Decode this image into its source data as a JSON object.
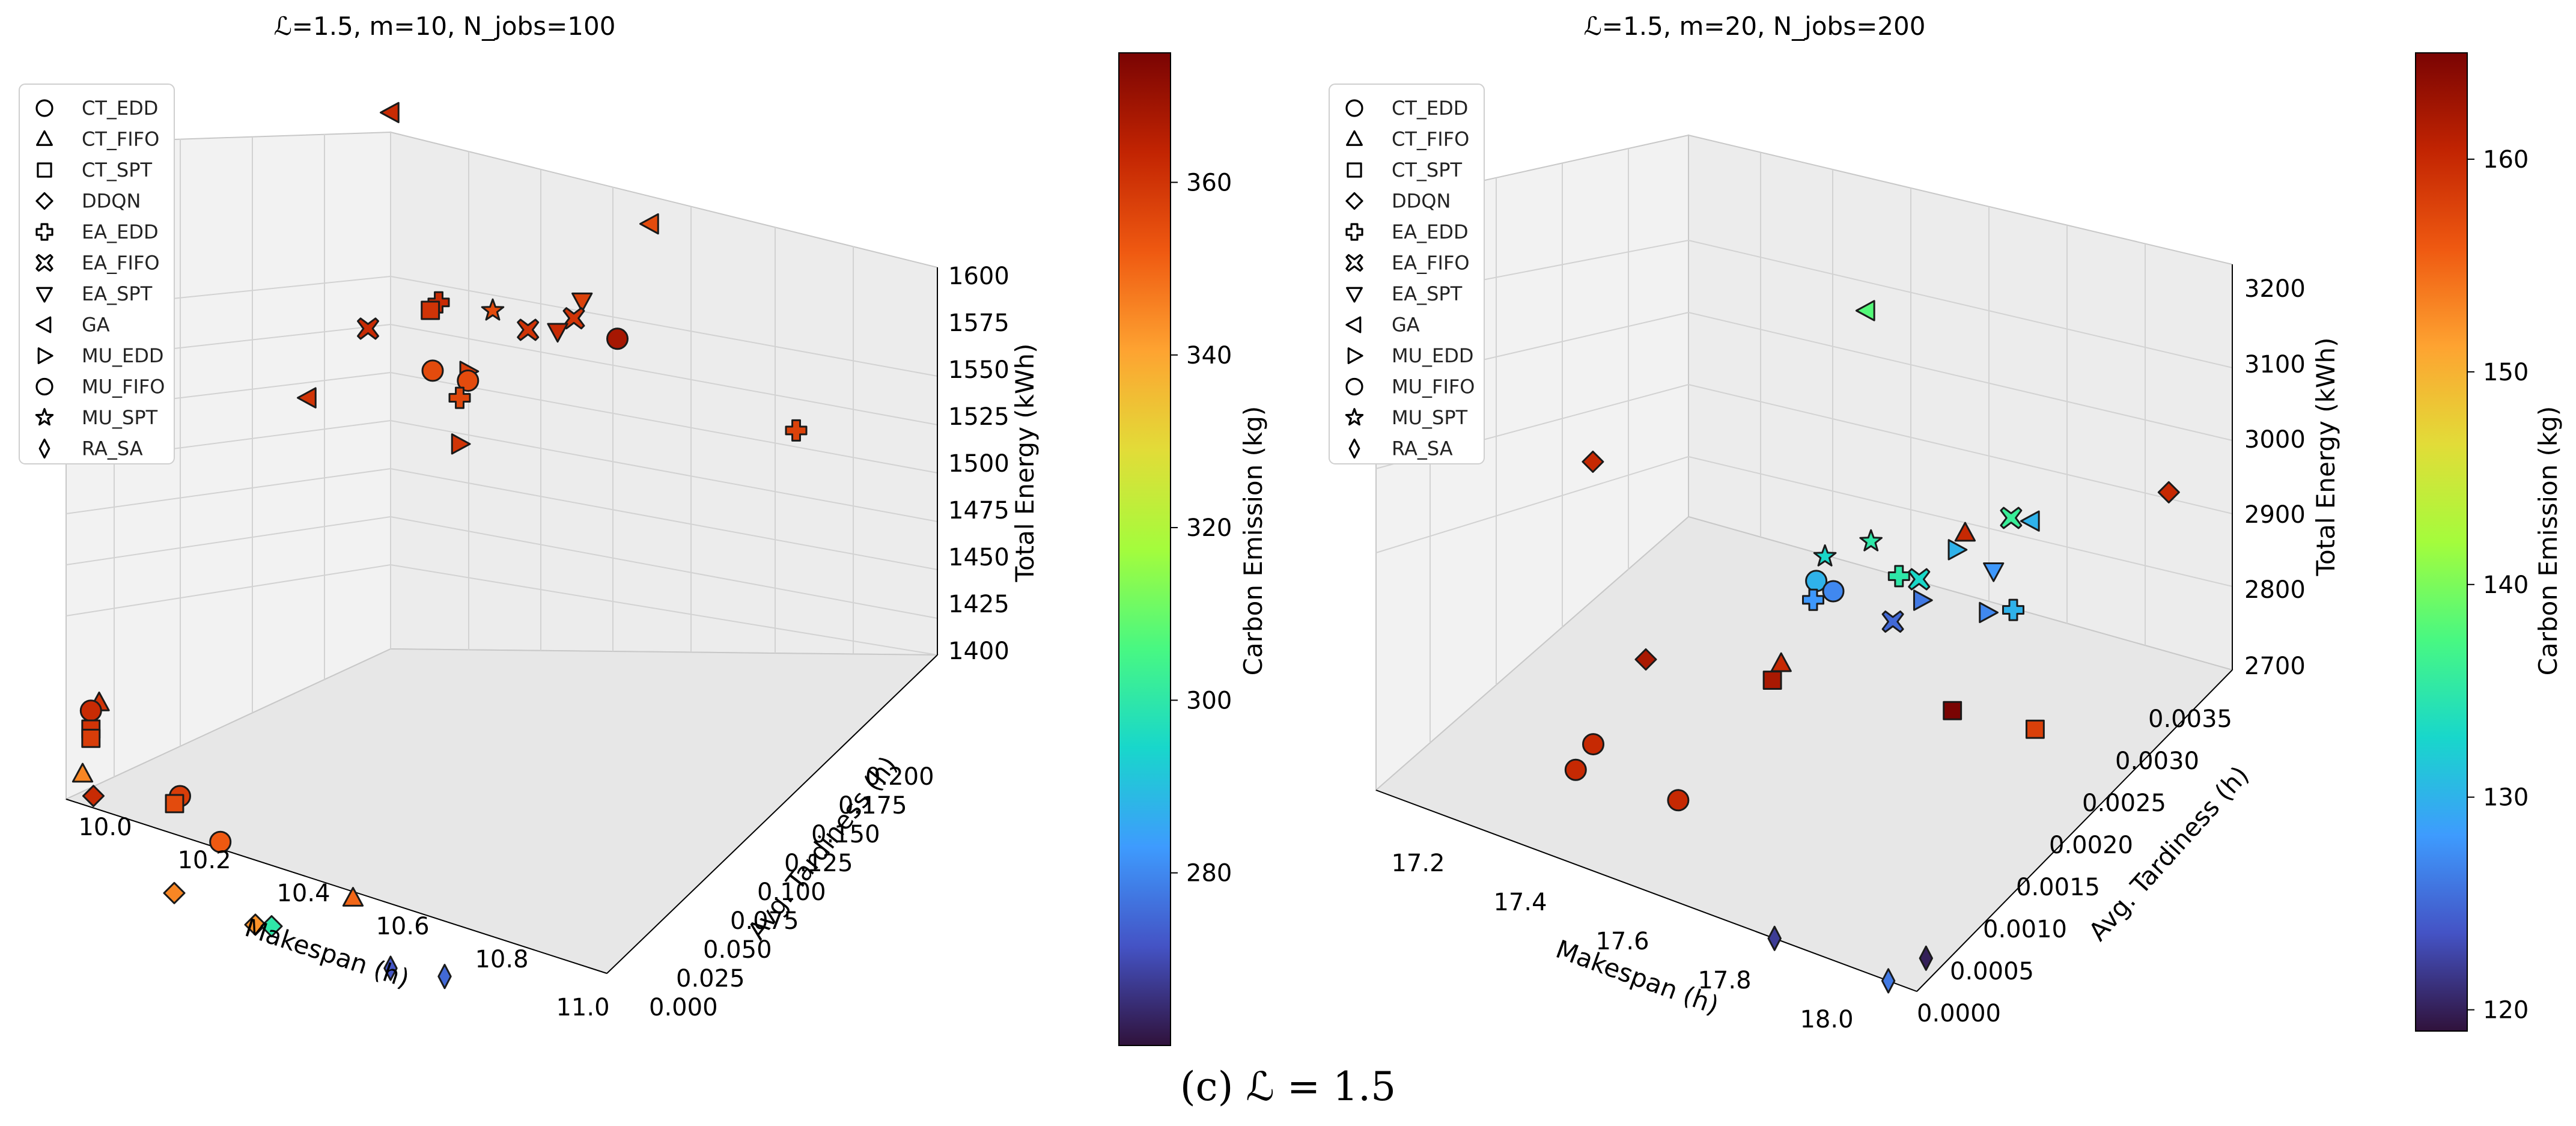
{
  "caption": "(c)  ℒ = 1.5",
  "chart_data": [
    {
      "type": "scatter3d",
      "title": "ℒ=1.5, m=10, N_jobs=100",
      "xlabel": "Makespan (h)",
      "ylabel": "Avg. Tardiness (h)",
      "zlabel": "Total Energy (kWh)",
      "colorbar_label": "Carbon Emission (kg)",
      "xlim": [
        10.0,
        11.0
      ],
      "ylim": [
        0.0,
        0.2
      ],
      "zlim": [
        1390,
        1600
      ],
      "clim": [
        260,
        375
      ],
      "xticks": [
        "10.0",
        "10.2",
        "10.4",
        "10.6",
        "10.8",
        "11.0"
      ],
      "yticks": [
        "0.000",
        "0.025",
        "0.050",
        "0.075",
        "0.100",
        "0.125",
        "0.150",
        "0.175",
        "0.200"
      ],
      "zticks": [
        "1400",
        "1425",
        "1450",
        "1475",
        "1500",
        "1525",
        "1550",
        "1575",
        "1600"
      ],
      "cticks": [
        "280",
        "300",
        "320",
        "340",
        "360"
      ],
      "legend": [
        "CT_EDD",
        "CT_FIFO",
        "CT_SPT",
        "DDQN",
        "EA_EDD",
        "EA_FIFO",
        "EA_SPT",
        "GA",
        "MU_EDD",
        "MU_FIFO",
        "MU_SPT",
        "RA_SA"
      ],
      "points": [
        {
          "method": "GA",
          "x": 10.02,
          "y": 0.19,
          "z": 1600,
          "c": 362
        },
        {
          "method": "GA",
          "x": 10.5,
          "y": 0.19,
          "z": 1585,
          "c": 355
        },
        {
          "method": "EA_FIFO",
          "x": 10.1,
          "y": 0.15,
          "z": 1525,
          "c": 362
        },
        {
          "method": "GA",
          "x": 10.05,
          "y": 0.13,
          "z": 1500,
          "c": 360
        },
        {
          "method": "EA_SPT",
          "x": 10.45,
          "y": 0.165,
          "z": 1560,
          "c": 357
        },
        {
          "method": "EA_FIFO",
          "x": 10.45,
          "y": 0.16,
          "z": 1555,
          "c": 360
        },
        {
          "method": "EA_SPT",
          "x": 10.42,
          "y": 0.16,
          "z": 1545,
          "c": 362
        },
        {
          "method": "MU_SPT",
          "x": 10.3,
          "y": 0.16,
          "z": 1545,
          "c": 355
        },
        {
          "method": "EA_EDD",
          "x": 10.2,
          "y": 0.16,
          "z": 1540,
          "c": 362
        },
        {
          "method": "CT_SPT",
          "x": 10.2,
          "y": 0.155,
          "z": 1540,
          "c": 360
        },
        {
          "method": "EA_FIFO",
          "x": 10.35,
          "y": 0.165,
          "z": 1535,
          "c": 360
        },
        {
          "method": "MU_FIFO",
          "x": 10.5,
          "y": 0.17,
          "z": 1540,
          "c": 368
        },
        {
          "method": "MU_FIFO",
          "x": 10.25,
          "y": 0.14,
          "z": 1525,
          "c": 355
        },
        {
          "method": "MU_EDD",
          "x": 10.3,
          "y": 0.145,
          "z": 1525,
          "c": 358
        },
        {
          "method": "MU_FIFO",
          "x": 10.3,
          "y": 0.145,
          "z": 1520,
          "c": 355
        },
        {
          "method": "EA_EDD",
          "x": 10.3,
          "y": 0.14,
          "z": 1515,
          "c": 356
        },
        {
          "method": "MU_EDD",
          "x": 10.3,
          "y": 0.14,
          "z": 1490,
          "c": 360
        },
        {
          "method": "EA_EDD",
          "x": 10.8,
          "y": 0.18,
          "z": 1510,
          "c": 357
        },
        {
          "method": "CT_EDD",
          "x": 10.0,
          "y": 0.015,
          "z": 1425,
          "c": 362
        },
        {
          "method": "CT_FIFO",
          "x": 10.0,
          "y": 0.02,
          "z": 1425,
          "c": 360
        },
        {
          "method": "CT_SPT",
          "x": 10.0,
          "y": 0.015,
          "z": 1415,
          "c": 360
        },
        {
          "method": "CT_SPT",
          "x": 10.0,
          "y": 0.015,
          "z": 1410,
          "c": 358
        },
        {
          "method": "CT_FIFO",
          "x": 10.0,
          "y": 0.01,
          "z": 1395,
          "c": 345
        },
        {
          "method": "DDQN",
          "x": 10.02,
          "y": 0.01,
          "z": 1385,
          "c": 362
        },
        {
          "method": "CT_EDD",
          "x": 10.18,
          "y": 0.01,
          "z": 1400,
          "c": 358
        },
        {
          "method": "CT_SPT",
          "x": 10.17,
          "y": 0.01,
          "z": 1395,
          "c": 355
        },
        {
          "method": "MU_FIFO",
          "x": 10.27,
          "y": 0.005,
          "z": 1388,
          "c": 352
        },
        {
          "method": "CT_FIFO",
          "x": 10.5,
          "y": 0.01,
          "z": 1375,
          "c": 350
        },
        {
          "method": "DDQN",
          "x": 10.2,
          "y": 0.0,
          "z": 1358,
          "c": 345
        },
        {
          "method": "DDQN",
          "x": 10.35,
          "y": 0.0,
          "z": 1355,
          "c": 343
        },
        {
          "method": "DDQN",
          "x": 10.38,
          "y": 0.0,
          "z": 1357,
          "c": 300
        },
        {
          "method": "RA_SA",
          "x": 10.6,
          "y": 0.0,
          "z": 1355,
          "c": 272
        },
        {
          "method": "RA_SA",
          "x": 10.7,
          "y": 0.0,
          "z": 1360,
          "c": 275
        }
      ]
    },
    {
      "type": "scatter3d",
      "title": "ℒ=1.5, m=20, N_jobs=200",
      "xlabel": "Makespan (h)",
      "ylabel": "Avg. Tardiness (h)",
      "zlabel": "Total Energy (kWh)",
      "colorbar_label": "Carbon Emission (kg)",
      "xlim": [
        17.1,
        18.05
      ],
      "ylim": [
        0.0,
        0.0036
      ],
      "zlim": [
        2700,
        3220
      ],
      "clim": [
        119,
        165
      ],
      "xticks": [
        "17.2",
        "17.4",
        "17.6",
        "17.8",
        "18.0"
      ],
      "yticks": [
        "0.0000",
        "0.0005",
        "0.0010",
        "0.0015",
        "0.0020",
        "0.0025",
        "0.0030",
        "0.0035"
      ],
      "zticks": [
        "2700",
        "2800",
        "2900",
        "3000",
        "3100",
        "3200"
      ],
      "cticks": [
        "120",
        "130",
        "140",
        "150",
        "160"
      ],
      "legend": [
        "CT_EDD",
        "CT_FIFO",
        "CT_SPT",
        "DDQN",
        "EA_EDD",
        "EA_FIFO",
        "EA_SPT",
        "GA",
        "MU_EDD",
        "MU_FIFO",
        "MU_SPT",
        "RA_SA"
      ],
      "points": [
        {
          "method": "GA",
          "x": 17.5,
          "y": 0.003,
          "z": 3080,
          "c": 138
        },
        {
          "method": "DDQN",
          "x": 17.25,
          "y": 0.0015,
          "z": 2990,
          "c": 160
        },
        {
          "method": "DDQN",
          "x": 18.0,
          "y": 0.0032,
          "z": 2960,
          "c": 160
        },
        {
          "method": "CT_FIFO",
          "x": 17.75,
          "y": 0.0025,
          "z": 2920,
          "c": 160
        },
        {
          "method": "MU_EDD",
          "x": 17.75,
          "y": 0.0024,
          "z": 2910,
          "c": 130
        },
        {
          "method": "EA_FIFO",
          "x": 17.8,
          "y": 0.0027,
          "z": 2930,
          "c": 136
        },
        {
          "method": "GA",
          "x": 17.82,
          "y": 0.0028,
          "z": 2920,
          "c": 130
        },
        {
          "method": "MU_SPT",
          "x": 17.6,
          "y": 0.0024,
          "z": 2880,
          "c": 135
        },
        {
          "method": "EA_FIFO",
          "x": 17.7,
          "y": 0.0023,
          "z": 2870,
          "c": 133
        },
        {
          "method": "EA_EDD",
          "x": 17.68,
          "y": 0.0022,
          "z": 2880,
          "c": 135
        },
        {
          "method": "EA_SPT",
          "x": 17.8,
          "y": 0.0025,
          "z": 2885,
          "c": 128
        },
        {
          "method": "MU_EDD",
          "x": 17.72,
          "y": 0.0022,
          "z": 2860,
          "c": 126
        },
        {
          "method": "EA_FIFO",
          "x": 17.7,
          "y": 0.002,
          "z": 2850,
          "c": 125
        },
        {
          "method": "MU_EDD",
          "x": 17.82,
          "y": 0.0023,
          "z": 2860,
          "c": 127
        },
        {
          "method": "EA_EDD",
          "x": 17.85,
          "y": 0.0024,
          "z": 2860,
          "c": 130
        },
        {
          "method": "MU_SPT",
          "x": 17.55,
          "y": 0.0022,
          "z": 2870,
          "c": 133
        },
        {
          "method": "MU_FIFO",
          "x": 17.55,
          "y": 0.0021,
          "z": 2850,
          "c": 130
        },
        {
          "method": "MU_FIFO",
          "x": 17.58,
          "y": 0.0021,
          "z": 2845,
          "c": 127
        },
        {
          "method": "EA_EDD",
          "x": 17.56,
          "y": 0.002,
          "z": 2840,
          "c": 128
        },
        {
          "method": "CT_FIFO",
          "x": 17.55,
          "y": 0.0017,
          "z": 2790,
          "c": 160
        },
        {
          "method": "CT_SPT",
          "x": 17.55,
          "y": 0.0016,
          "z": 2780,
          "c": 162
        },
        {
          "method": "CT_SPT",
          "x": 17.82,
          "y": 0.0019,
          "z": 2780,
          "c": 165
        },
        {
          "method": "CT_SPT",
          "x": 17.95,
          "y": 0.002,
          "z": 2780,
          "c": 158
        },
        {
          "method": "DDQN",
          "x": 17.42,
          "y": 0.001,
          "z": 2840,
          "c": 162
        },
        {
          "method": "MU_FIFO",
          "x": 17.42,
          "y": 0.0004,
          "z": 2800,
          "c": 160
        },
        {
          "method": "CT_EDD",
          "x": 17.42,
          "y": 0.0002,
          "z": 2790,
          "c": 160
        },
        {
          "method": "CT_EDD",
          "x": 17.6,
          "y": 0.0002,
          "z": 2800,
          "c": 160
        },
        {
          "method": "RA_SA",
          "x": 17.8,
          "y": 0.0,
          "z": 2700,
          "c": 122
        },
        {
          "method": "RA_SA",
          "x": 18.02,
          "y": 0.0003,
          "z": 2700,
          "c": 120
        },
        {
          "method": "RA_SA",
          "x": 18.0,
          "y": 0.0,
          "z": 2700,
          "c": 126
        }
      ]
    }
  ]
}
